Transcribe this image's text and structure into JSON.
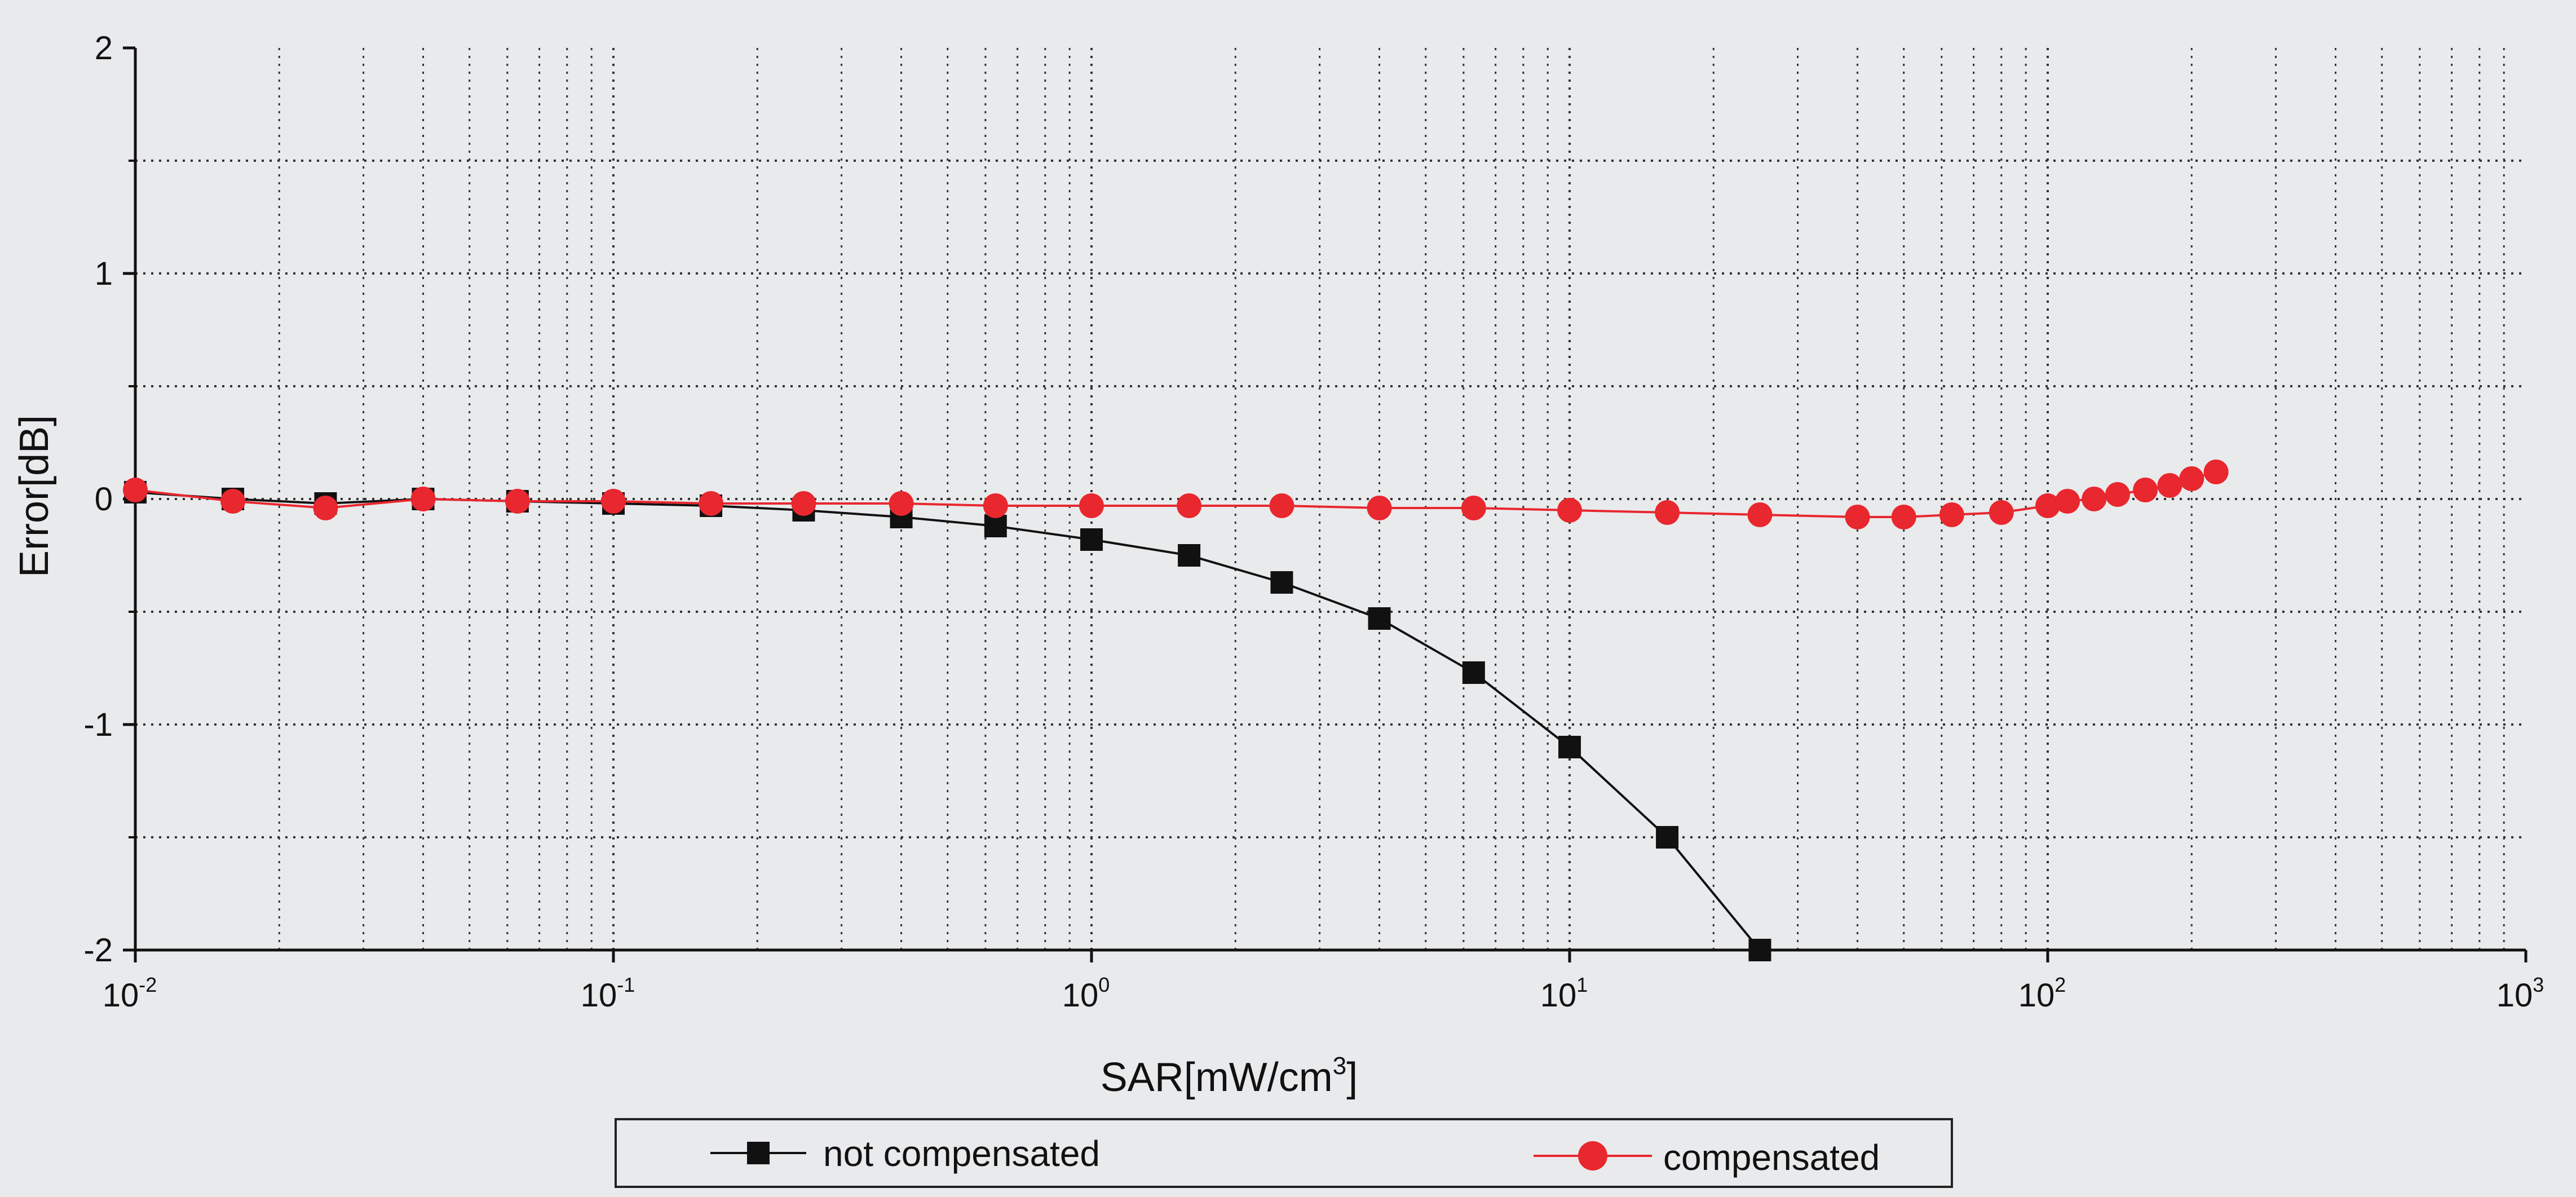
{
  "chart_data": {
    "type": "line",
    "xlabel": "SAR[mW/cm",
    "xlabel_sup": "3",
    "xlabel_tail": "]",
    "ylabel": "Error[dB]",
    "x_scale": "log",
    "xlim": [
      0.01,
      1000
    ],
    "ylim": [
      -2,
      2
    ],
    "grid": true,
    "grid_style": "dotted",
    "legend_position": "bottom",
    "x_tick_labels": [
      {
        "base": "10",
        "exp": "-2"
      },
      {
        "base": "10",
        "exp": "-1"
      },
      {
        "base": "10",
        "exp": "0"
      },
      {
        "base": "10",
        "exp": "1"
      },
      {
        "base": "10",
        "exp": "2"
      },
      {
        "base": "10",
        "exp": "3"
      }
    ],
    "y_tick_labels": [
      "2",
      "1",
      "0",
      "-1",
      "-2"
    ],
    "series": [
      {
        "name": "not compensated",
        "color": "#111111",
        "marker": "square",
        "x": [
          0.01,
          0.016,
          0.025,
          0.04,
          0.063,
          0.1,
          0.16,
          0.25,
          0.4,
          0.63,
          1.0,
          1.6,
          2.5,
          4.0,
          6.3,
          10,
          16,
          25
        ],
        "y": [
          0.03,
          0.0,
          -0.02,
          0.0,
          -0.01,
          -0.02,
          -0.03,
          -0.05,
          -0.08,
          -0.12,
          -0.18,
          -0.25,
          -0.37,
          -0.53,
          -0.77,
          -1.1,
          -1.5,
          -2.0
        ]
      },
      {
        "name": "compensated",
        "color": "#e8272e",
        "marker": "circle",
        "x": [
          0.01,
          0.016,
          0.025,
          0.04,
          0.063,
          0.1,
          0.16,
          0.25,
          0.4,
          0.63,
          1.0,
          1.6,
          2.5,
          4.0,
          6.3,
          10,
          16,
          25,
          40,
          50,
          63,
          80,
          100,
          110,
          125,
          140,
          160,
          180,
          200,
          225
        ],
        "y": [
          0.04,
          -0.01,
          -0.04,
          0.0,
          -0.01,
          -0.01,
          -0.02,
          -0.02,
          -0.02,
          -0.03,
          -0.03,
          -0.03,
          -0.03,
          -0.04,
          -0.04,
          -0.05,
          -0.06,
          -0.07,
          -0.08,
          -0.08,
          -0.07,
          -0.06,
          -0.03,
          -0.01,
          0.0,
          0.02,
          0.04,
          0.06,
          0.09,
          0.12
        ]
      }
    ]
  }
}
